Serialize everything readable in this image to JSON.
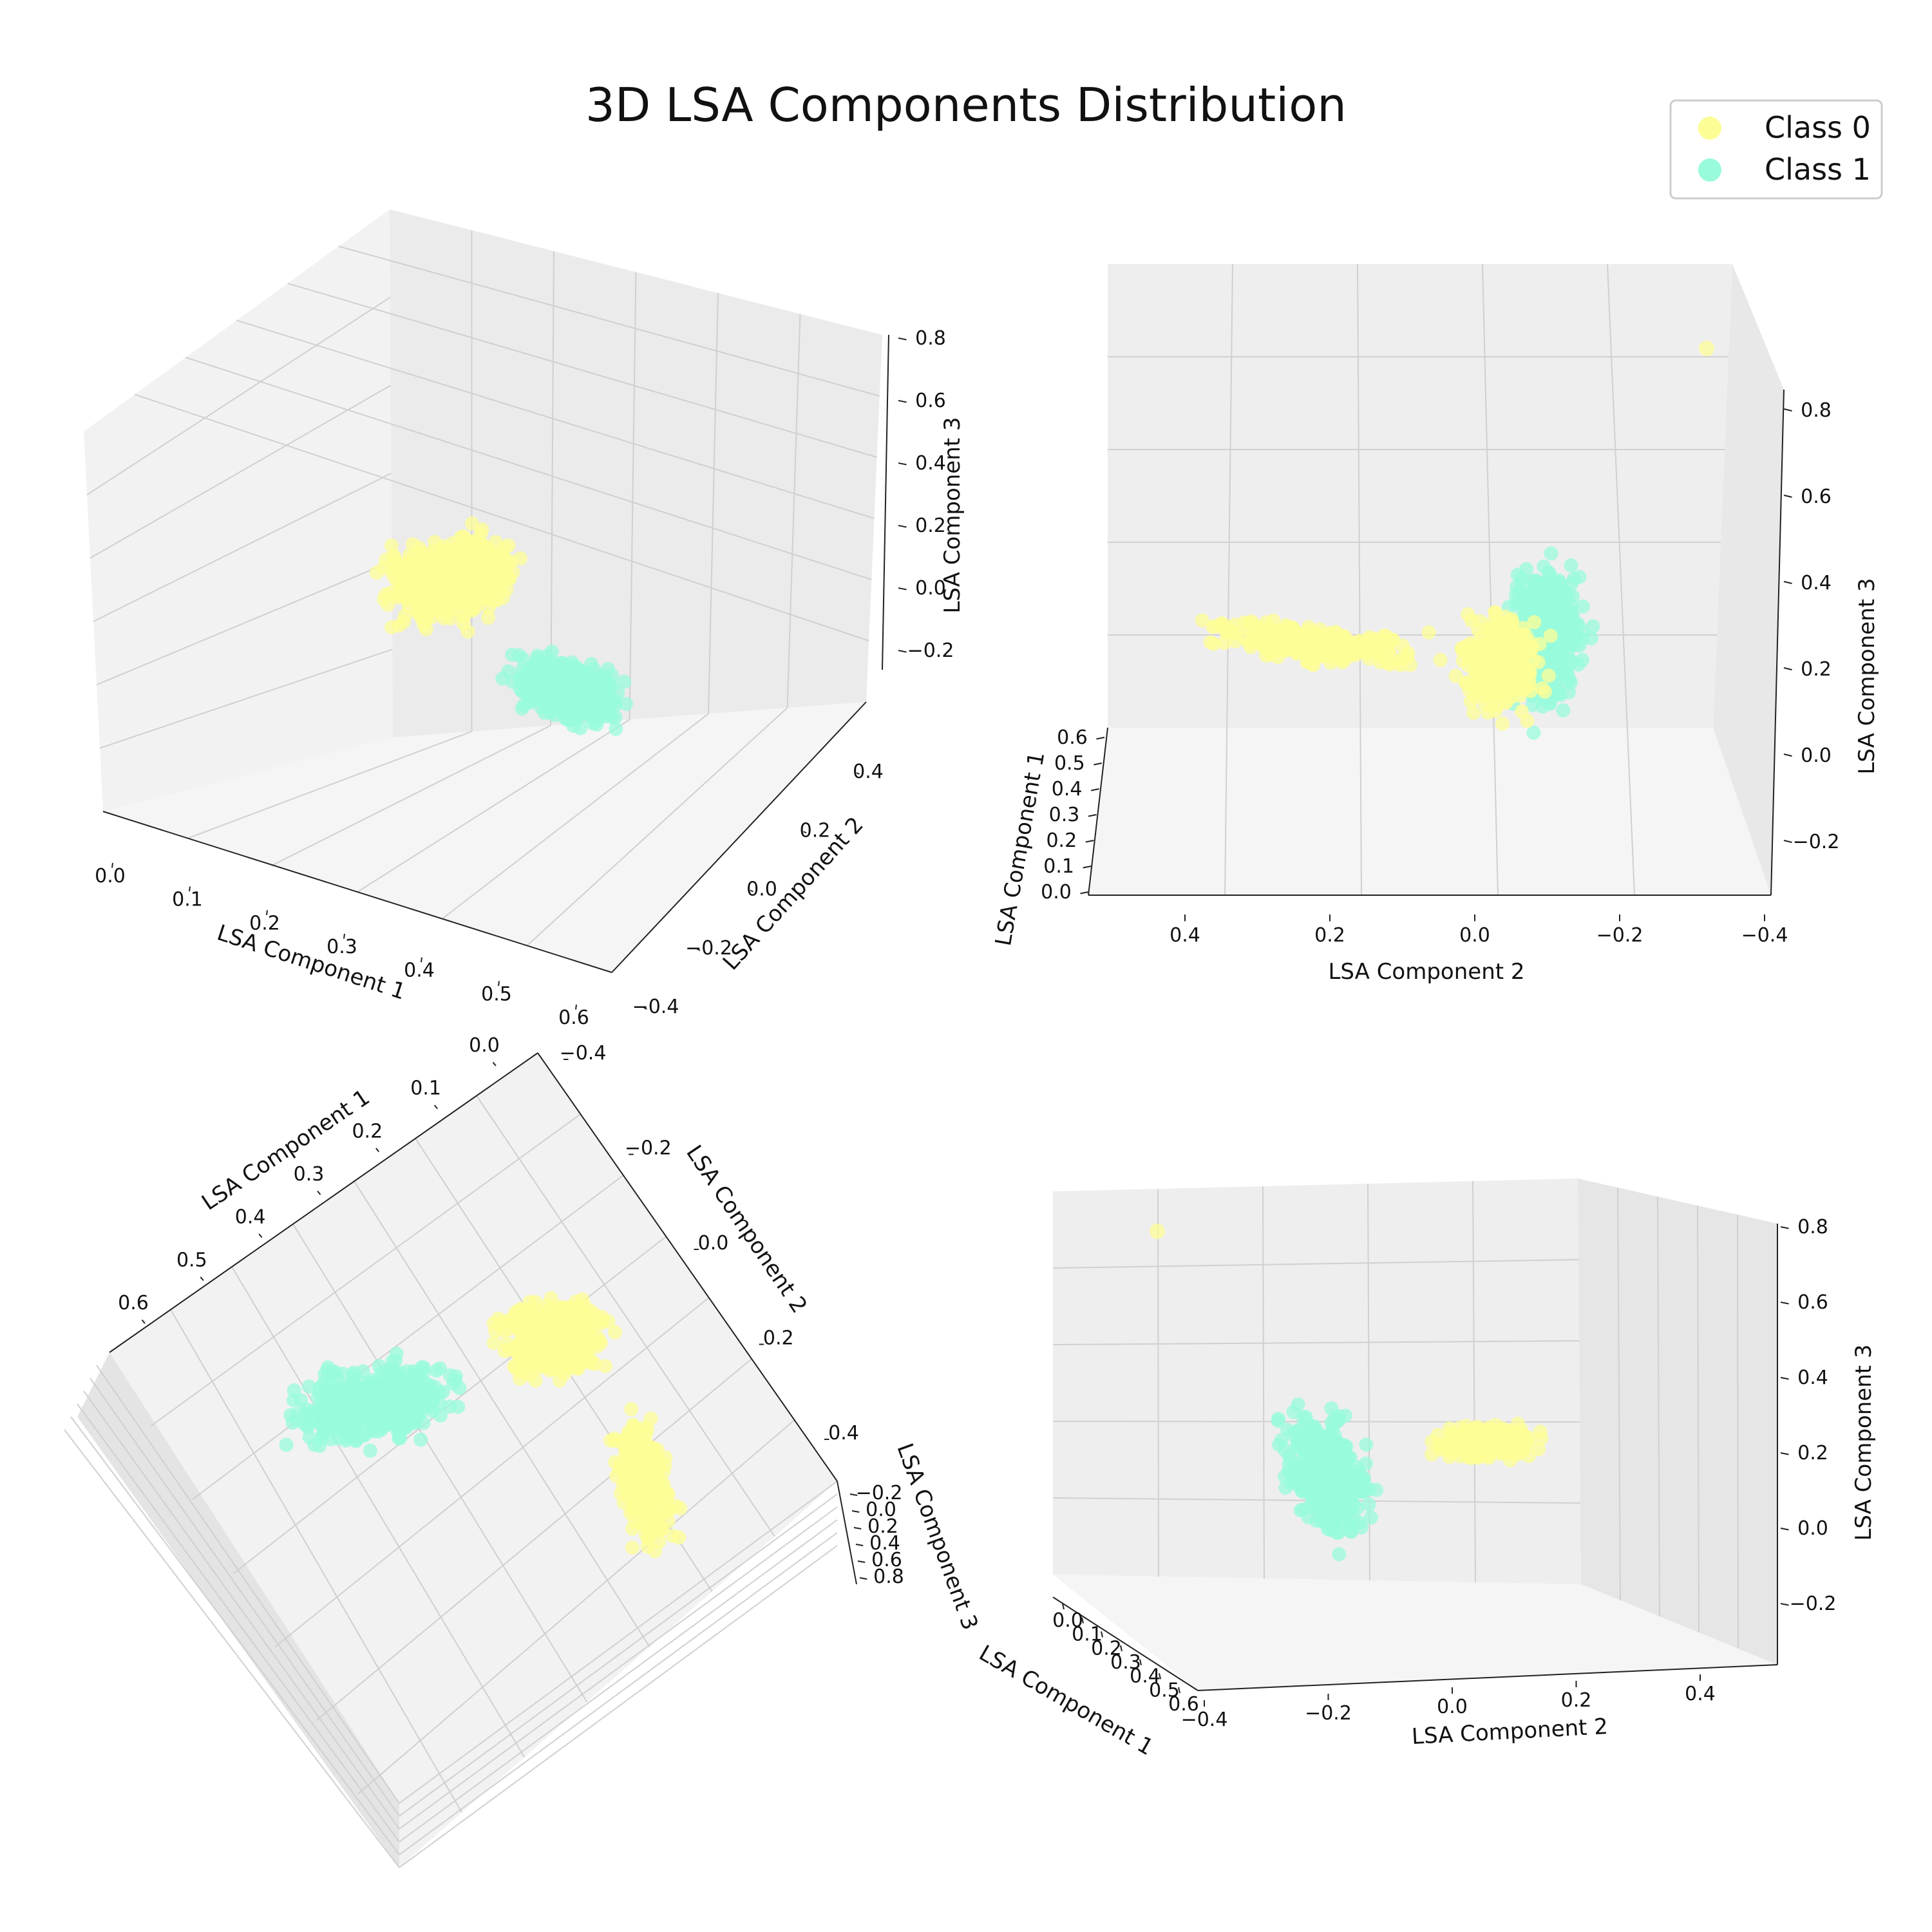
{
  "figure": {
    "title": "3D LSA Components Distribution"
  },
  "legend": {
    "placement": "top-right",
    "entries": [
      {
        "label": "Class 0",
        "color": "#fdfd96"
      },
      {
        "label": "Class 1",
        "color": "#98fbdc"
      }
    ]
  },
  "chart_data": [
    {
      "type": "scatter",
      "projection": "3d",
      "view": "default",
      "xlabel": "LSA Component 1",
      "ylabel": "LSA Component 2",
      "zlabel": "LSA Component 3",
      "xticks": [
        "0.0",
        "0.1",
        "0.2",
        "0.3",
        "0.4",
        "0.5",
        "0.6"
      ],
      "yticks": [
        "−0.4",
        "−0.2",
        "0.0",
        "0.2",
        "0.4"
      ],
      "zticks": [
        "−0.2",
        "0.0",
        "0.2",
        "0.4",
        "0.6",
        "0.8"
      ],
      "xlim": [
        0.0,
        0.65
      ],
      "ylim": [
        -0.45,
        0.5
      ],
      "zlim": [
        -0.3,
        0.85
      ],
      "grid": true
    },
    {
      "type": "scatter",
      "projection": "3d",
      "view": "front-elevated",
      "xlabel": "LSA Component 1",
      "ylabel": "LSA Component 2",
      "zlabel": "LSA Component 3",
      "xticks": [
        "0.0",
        "0.1",
        "0.2",
        "0.3",
        "0.4",
        "0.5",
        "0.6"
      ],
      "yticks": [
        "0.4",
        "0.2",
        "0.0",
        "−0.2",
        "−0.4"
      ],
      "zticks": [
        "−0.2",
        "0.0",
        "0.2",
        "0.4",
        "0.6",
        "0.8"
      ],
      "grid": true
    },
    {
      "type": "scatter",
      "projection": "3d",
      "view": "top-down",
      "xlabel": "LSA Component 1",
      "ylabel": "LSA Component 2",
      "zlabel": "LSA Component 3",
      "xticks": [
        "0.0",
        "0.1",
        "0.2",
        "0.3",
        "0.4",
        "0.5",
        "0.6"
      ],
      "yticks": [
        "−0.4",
        "−0.2",
        "0.0",
        "0.2",
        "0.4"
      ],
      "zticks": [
        "−0.2",
        "0.0",
        "0.2",
        "0.4",
        "0.6",
        "0.8"
      ],
      "grid": true
    },
    {
      "type": "scatter",
      "projection": "3d",
      "view": "side",
      "xlabel": "LSA Component 1",
      "ylabel": "LSA Component 2",
      "zlabel": "LSA Component 3",
      "xticks": [
        "0.0",
        "0.1",
        "0.2",
        "0.3",
        "0.4",
        "0.5",
        "0.6"
      ],
      "yticks": [
        "−0.4",
        "−0.2",
        "0.0",
        "0.2",
        "0.4"
      ],
      "zticks": [
        "−0.2",
        "0.0",
        "0.2",
        "0.4",
        "0.6",
        "0.8"
      ],
      "grid": true
    }
  ],
  "series": [
    {
      "name": "Class 0",
      "color": "#fdfd96",
      "approx_centroid": [
        0.2,
        -0.05,
        0.3
      ]
    },
    {
      "name": "Class 1",
      "color": "#98fbdc",
      "approx_centroid": [
        0.35,
        0.05,
        0.0
      ]
    }
  ]
}
